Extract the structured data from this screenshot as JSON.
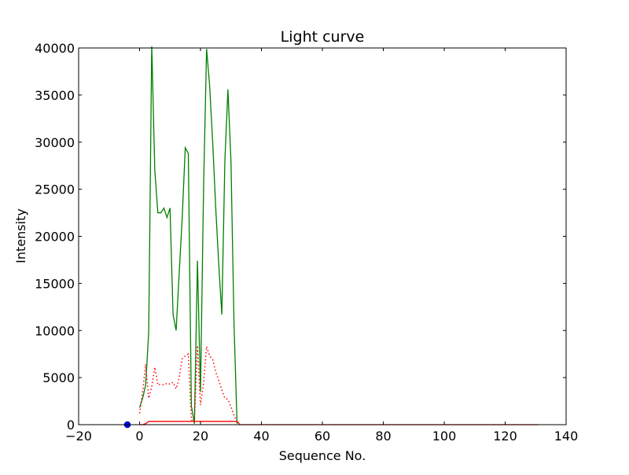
{
  "chart_data": {
    "type": "line",
    "title": "Light curve",
    "xlabel": "Sequence No.",
    "ylabel": "Intensity",
    "xlim": [
      -20,
      140
    ],
    "ylim": [
      0,
      40000
    ],
    "xticks": [
      -20,
      0,
      20,
      40,
      60,
      80,
      100,
      120,
      140
    ],
    "yticks": [
      0,
      5000,
      10000,
      15000,
      20000,
      25000,
      30000,
      35000,
      40000
    ],
    "grid": false,
    "legend": "none",
    "series": [
      {
        "color": "#008000",
        "style": "solid",
        "x": [
          0,
          1,
          2,
          3,
          4,
          5,
          6,
          7,
          8,
          9,
          10,
          11,
          12,
          13,
          14,
          15,
          16,
          17,
          18,
          19,
          20,
          21,
          22,
          23,
          24,
          25,
          26,
          27,
          28,
          29,
          30,
          31,
          32
        ],
        "y": [
          1800,
          2800,
          4200,
          9800,
          40400,
          27000,
          22500,
          22500,
          23000,
          22000,
          23000,
          11700,
          10000,
          16000,
          22000,
          29400,
          28800,
          2000,
          100,
          17400,
          3500,
          25000,
          39900,
          36000,
          30000,
          23000,
          17000,
          11700,
          28000,
          35600,
          28000,
          10700,
          100
        ]
      },
      {
        "color": "#ff0000",
        "style": "dotted",
        "x": [
          0,
          1,
          2,
          3,
          4,
          5,
          6,
          7,
          8,
          9,
          10,
          11,
          12,
          13,
          14,
          15,
          16,
          17,
          18,
          19,
          20,
          21,
          22,
          23,
          24,
          25,
          26,
          27,
          28,
          29,
          30,
          31,
          32
        ],
        "y": [
          1200,
          3500,
          6400,
          2800,
          4000,
          6100,
          4200,
          4300,
          4200,
          4400,
          4300,
          4500,
          3800,
          5000,
          7000,
          7300,
          7500,
          500,
          300,
          8400,
          2100,
          4400,
          8300,
          7300,
          6900,
          5600,
          4700,
          3700,
          2800,
          2700,
          1900,
          1000,
          200
        ]
      },
      {
        "color": "#ff0000",
        "style": "solid",
        "x": [
          0,
          1,
          2,
          3,
          4,
          32,
          33,
          131
        ],
        "y": [
          0,
          0,
          100,
          350,
          350,
          350,
          0,
          0
        ]
      },
      {
        "color": "#0000ff",
        "style": "marker",
        "x": [
          -4
        ],
        "y": [
          0
        ]
      }
    ]
  }
}
